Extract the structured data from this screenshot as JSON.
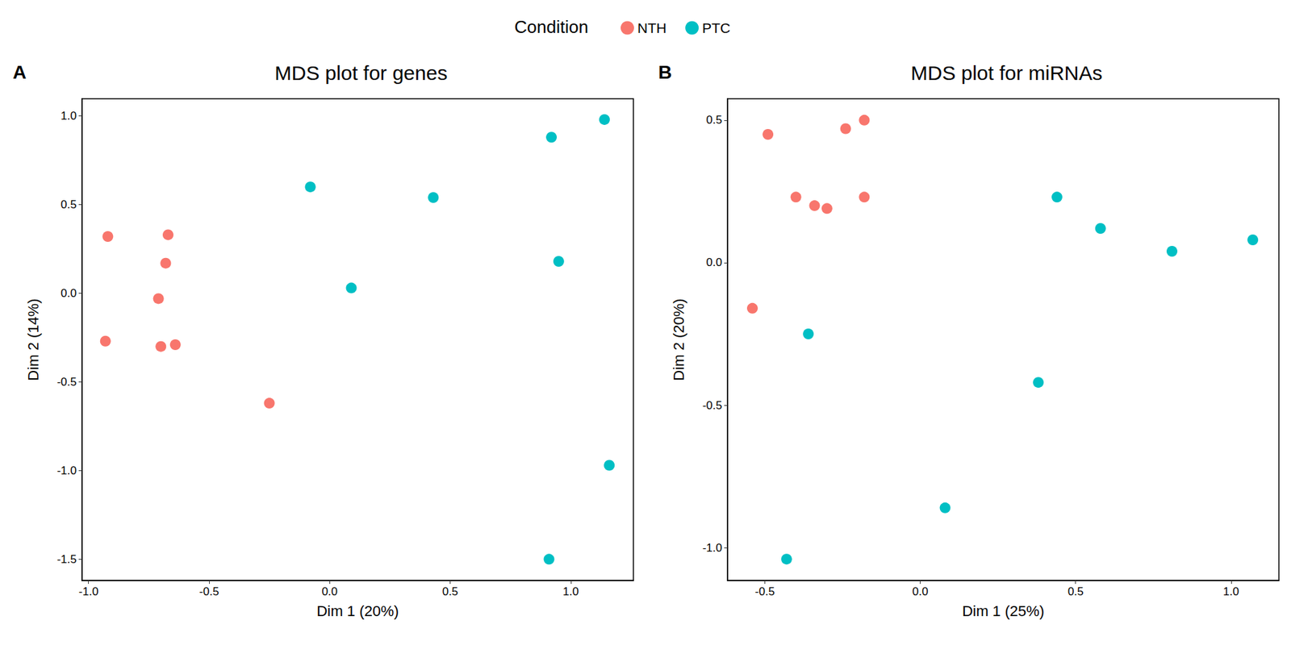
{
  "legend_title": "Condition",
  "chart_data": [
    {
      "type": "scatter",
      "label": "A",
      "title": "MDS plot for genes",
      "x_label": "Dim 1 (20%)",
      "y_label": "Dim 2 (14%)",
      "xlim": [
        -1.027,
        1.26
      ],
      "ylim": [
        -1.62,
        1.097
      ],
      "xticks": [
        {
          "value": -1,
          "label": "-1.0"
        },
        -0.5,
        {
          "value": 0,
          "label": "0.0"
        },
        0.5,
        {
          "value": 1,
          "label": "1.0"
        }
      ],
      "yticks": [
        -1.5,
        {
          "value": -1,
          "label": "-1.0"
        },
        -0.5,
        {
          "value": 0,
          "label": "0.0"
        },
        0.5,
        {
          "value": 1,
          "label": "1.0"
        }
      ],
      "legend": "top",
      "grid": false,
      "marker": "circle",
      "series": [
        {
          "name": "NTH",
          "color": "#F8766D",
          "x": [
            -0.92,
            -0.67,
            -0.68,
            -0.71,
            -0.93,
            -0.7,
            -0.64,
            -0.25
          ],
          "y": [
            0.32,
            0.33,
            0.17,
            -0.03,
            -0.27,
            -0.3,
            -0.29,
            -0.62
          ]
        },
        {
          "name": "PTC",
          "color": "#00BFC4",
          "x": [
            1.14,
            0.92,
            -0.08,
            0.43,
            0.95,
            0.09,
            1.16,
            0.91
          ],
          "y": [
            0.98,
            0.88,
            0.6,
            0.54,
            0.18,
            0.03,
            -0.97,
            -1.5
          ]
        }
      ]
    },
    {
      "type": "scatter",
      "label": "B",
      "title": "MDS plot for miRNAs",
      "x_label": "Dim 1 (25%)",
      "y_label": "Dim 2 (20%)",
      "xlim": [
        -0.62,
        1.154
      ],
      "ylim": [
        -1.115,
        0.575
      ],
      "xticks": [
        -0.5,
        {
          "value": 0,
          "label": "0.0"
        },
        0.5,
        {
          "value": 1,
          "label": "1.0"
        }
      ],
      "yticks": [
        {
          "value": -1,
          "label": "-1.0"
        },
        -0.5,
        {
          "value": 0,
          "label": "0.0"
        },
        0.5
      ],
      "legend": "top",
      "grid": false,
      "marker": "circle",
      "series": [
        {
          "name": "NTH",
          "color": "#F8766D",
          "x": [
            -0.49,
            -0.24,
            -0.18,
            -0.4,
            -0.34,
            -0.3,
            -0.18,
            -0.54
          ],
          "y": [
            0.45,
            0.47,
            0.5,
            0.23,
            0.2,
            0.19,
            0.23,
            -0.16
          ]
        },
        {
          "name": "PTC",
          "color": "#00BFC4",
          "x": [
            0.44,
            0.58,
            0.81,
            1.07,
            -0.36,
            0.38,
            0.08,
            -0.43
          ],
          "y": [
            0.23,
            0.12,
            0.04,
            0.08,
            -0.25,
            -0.42,
            -0.86,
            -1.04
          ]
        }
      ]
    }
  ]
}
